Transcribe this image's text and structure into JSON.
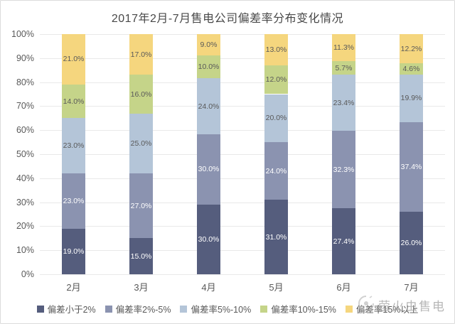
{
  "title": "2017年2月-7月售电公司偏差率分布变化情况",
  "watermark": {
    "text": "萤火虫售电"
  },
  "colors": {
    "grid": "#e9e9e9",
    "axis_text": "#595959",
    "title_text": "#484848",
    "watermark_text": "#8c8c8c"
  },
  "chart_data": {
    "type": "bar",
    "stacked": true,
    "percent": true,
    "grid": true,
    "legend_position": "bottom",
    "ylim": [
      0,
      100
    ],
    "y_ticks": [
      "100%",
      "90%",
      "80%",
      "70%",
      "60%",
      "50%",
      "40%",
      "30%",
      "20%",
      "10%",
      "0%"
    ],
    "categories": [
      "2月",
      "3月",
      "4月",
      "5月",
      "6月",
      "7月"
    ],
    "series": [
      {
        "name": "偏差小于2%",
        "color": "#555d7d",
        "label_color": "#ffffff",
        "values": [
          19.0,
          15.0,
          30.0,
          31.0,
          27.4,
          26.0
        ],
        "labels": [
          "19.0%",
          "15.0%",
          "30.0%",
          "31.0%",
          "27.4%",
          "26.0%"
        ]
      },
      {
        "name": "偏差率2%-5%",
        "color": "#8b93b0",
        "label_color": "#ffffff",
        "values": [
          23.0,
          27.0,
          30.0,
          24.0,
          32.3,
          37.4
        ],
        "labels": [
          "23.0%",
          "27.0%",
          "30.0%",
          "24.0%",
          "32.3%",
          "37.4%"
        ]
      },
      {
        "name": "偏差率5%-10%",
        "color": "#b4c5d8",
        "label_color": "#595959",
        "values": [
          23.0,
          25.0,
          24.0,
          20.0,
          23.4,
          19.9
        ],
        "labels": [
          "23.0%",
          "25.0%",
          "24.0%",
          "20.0%",
          "23.4%",
          "19.9%"
        ]
      },
      {
        "name": "偏差率10%-15%",
        "color": "#c5d489",
        "label_color": "#595959",
        "values": [
          14.0,
          16.0,
          10.0,
          12.0,
          5.7,
          4.6
        ],
        "labels": [
          "14.0%",
          "16.0%",
          "10.0%",
          "12.0%",
          "5.7%",
          "4.6%"
        ]
      },
      {
        "name": "偏差率15%以上",
        "color": "#f5d67e",
        "label_color": "#595959",
        "values": [
          21.0,
          17.0,
          9.0,
          13.0,
          11.3,
          12.2
        ],
        "labels": [
          "21.0%",
          "17.0%",
          "9.0%",
          "13.0%",
          "11.3%",
          "12.2%"
        ]
      }
    ]
  }
}
